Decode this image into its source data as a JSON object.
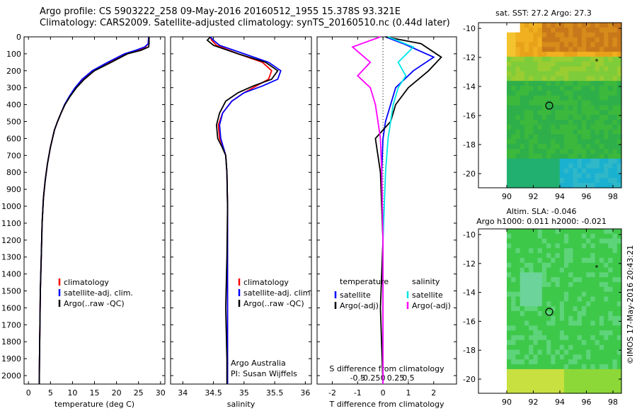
{
  "header": {
    "line1": "Argo profile: CS 5903222_258 09-May-2016 20160512_1955 15.378S 93.321E",
    "line2": "Climatology: CARS2009. Satellite-adjusted climatology: synTS_20160510.nc (0.44d later)"
  },
  "side_stamp": "©IMOS 17-May-2016 20:43:21",
  "chart_data": [
    {
      "id": "temperature",
      "type": "line",
      "xlabel": "temperature (deg C)",
      "xlim": [
        -1,
        31
      ],
      "xticks": [
        0,
        5,
        10,
        15,
        20,
        25,
        30
      ],
      "ylim": [
        0,
        2050
      ],
      "yticks": [
        0,
        100,
        200,
        300,
        400,
        500,
        600,
        700,
        800,
        900,
        1000,
        1100,
        1200,
        1300,
        1400,
        1500,
        1600,
        1700,
        1800,
        1900,
        2000
      ],
      "legend": [
        "climatology",
        "satellite-adj. clim.",
        "Argo(..raw -QC)"
      ],
      "series": [
        {
          "name": "climatology",
          "color": "#ff0000",
          "x": [
            27.3,
            27.2,
            26.6,
            25.0,
            22.5,
            18.5,
            14.8,
            12.5,
            10.8,
            9.4,
            8.3,
            7.4,
            6.6,
            5.9,
            5.0,
            4.3,
            3.8,
            3.4,
            3.1,
            2.9,
            2.7,
            2.6,
            2.5,
            2.45
          ],
          "y": [
            0,
            40,
            60,
            80,
            100,
            150,
            200,
            250,
            300,
            350,
            400,
            450,
            500,
            550,
            650,
            750,
            850,
            950,
            1100,
            1300,
            1500,
            1700,
            1900,
            2050
          ]
        },
        {
          "name": "satellite-adj. clim.",
          "color": "#0000ff",
          "x": [
            27.3,
            27.2,
            26.4,
            24.3,
            21.8,
            18.0,
            14.5,
            12.2,
            10.6,
            9.3,
            8.2,
            7.4,
            6.6,
            5.9,
            5.0,
            4.3,
            3.8,
            3.4,
            3.1,
            2.9,
            2.7,
            2.6,
            2.5,
            2.45
          ],
          "y": [
            0,
            40,
            60,
            80,
            100,
            150,
            200,
            250,
            300,
            350,
            400,
            450,
            500,
            550,
            650,
            750,
            850,
            950,
            1100,
            1300,
            1500,
            1700,
            1900,
            2050
          ]
        },
        {
          "name": "Argo(..raw -QC)",
          "color": "#000000",
          "x": [
            27.4,
            27.4,
            27.3,
            25.5,
            22.5,
            18.8,
            15.0,
            12.7,
            10.9,
            9.5,
            8.3,
            7.4,
            6.6,
            5.9,
            5.0,
            4.3,
            3.8,
            3.4,
            3.1,
            2.9,
            2.7,
            2.6,
            2.5,
            2.45
          ],
          "y": [
            0,
            40,
            60,
            80,
            100,
            150,
            200,
            250,
            300,
            350,
            400,
            450,
            500,
            550,
            650,
            750,
            850,
            950,
            1100,
            1300,
            1500,
            1700,
            1900,
            2050
          ]
        }
      ]
    },
    {
      "id": "salinity",
      "type": "line",
      "xlabel": "salinity",
      "xlim": [
        33.8,
        36.1
      ],
      "xticks": [
        34,
        34.5,
        35,
        35.5,
        36
      ],
      "ylim": [
        0,
        2050
      ],
      "legend": [
        "climatology",
        "satellite-adj. clim.",
        "Argo(..raw -QC)"
      ],
      "annotations": [
        "Argo Australia",
        "PI: Susan Wijffels"
      ],
      "series": [
        {
          "name": "climatology",
          "color": "#ff0000",
          "x": [
            34.45,
            34.47,
            34.55,
            34.9,
            35.3,
            35.45,
            35.4,
            35.2,
            35.0,
            34.8,
            34.65,
            34.58,
            34.6,
            34.66,
            34.7,
            34.72,
            34.73,
            34.73,
            34.73,
            34.73,
            34.73
          ],
          "y": [
            0,
            20,
            50,
            100,
            150,
            200,
            250,
            290,
            330,
            380,
            450,
            520,
            600,
            650,
            700,
            800,
            1000,
            1300,
            1600,
            1900,
            2050
          ]
        },
        {
          "name": "satellite-adj. clim.",
          "color": "#0000ff",
          "x": [
            34.45,
            34.5,
            34.6,
            35.0,
            35.4,
            35.6,
            35.55,
            35.3,
            35.0,
            34.8,
            34.65,
            34.6,
            34.62,
            34.66,
            34.7,
            34.72,
            34.73,
            34.73,
            34.73,
            34.73,
            34.73
          ],
          "y": [
            0,
            20,
            50,
            100,
            150,
            200,
            250,
            290,
            330,
            380,
            450,
            520,
            600,
            650,
            700,
            800,
            1000,
            1300,
            1600,
            1900,
            2050
          ]
        },
        {
          "name": "Argo(..raw -QC)",
          "color": "#000000",
          "x": [
            34.45,
            34.4,
            34.5,
            34.9,
            35.35,
            35.55,
            35.45,
            35.15,
            34.9,
            34.7,
            34.6,
            34.55,
            34.57,
            34.64,
            34.7,
            34.72,
            34.73,
            34.72,
            34.7,
            34.72,
            34.72
          ],
          "y": [
            0,
            20,
            50,
            100,
            150,
            200,
            250,
            290,
            330,
            380,
            450,
            520,
            600,
            650,
            700,
            800,
            1000,
            1300,
            1600,
            1900,
            2050
          ]
        }
      ]
    },
    {
      "id": "differences",
      "type": "line",
      "xlabel": "T difference from climatology",
      "xlabel_top": "S difference from climatology",
      "xlim": [
        -2.6,
        2.9
      ],
      "xticks": [
        -2,
        -1,
        0,
        1,
        2
      ],
      "xticks_top": [
        "-0.5",
        "-0.25",
        "0",
        "0.25",
        "0.5"
      ],
      "ylim": [
        0,
        2050
      ],
      "legend_left": {
        "title": "temperature",
        "items": [
          "satellite",
          "Argo(-adj)"
        ]
      },
      "legend_right": {
        "title": "salinity",
        "items": [
          "satellite",
          "Argo(-adj)"
        ]
      },
      "series": [
        {
          "name": "temperature satellite",
          "color": "#0000ff",
          "x": [
            0.1,
            0.8,
            2.0,
            1.2,
            0.5,
            0.3,
            0.1,
            0.0,
            -0.05,
            0.0,
            0.0
          ],
          "y": [
            0,
            40,
            120,
            200,
            300,
            400,
            500,
            600,
            800,
            1200,
            2050
          ]
        },
        {
          "name": "temperature Argo(-adj)",
          "color": "#000000",
          "x": [
            0.1,
            1.5,
            2.3,
            1.8,
            1.0,
            0.5,
            0.3,
            -0.3,
            -0.1,
            0.0,
            -0.1,
            0.0
          ],
          "y": [
            0,
            40,
            120,
            200,
            300,
            400,
            500,
            600,
            800,
            1200,
            1600,
            2050
          ]
        },
        {
          "name": "salinity satellite",
          "color": "#00e5e5",
          "x": [
            0.2,
            1.2,
            0.6,
            0.9,
            0.6,
            0.4,
            0.3,
            0.2,
            0.1,
            0.0,
            0.0
          ],
          "y": [
            0,
            60,
            150,
            230,
            300,
            400,
            500,
            600,
            800,
            1200,
            2050
          ]
        },
        {
          "name": "salinity Argo(-adj)",
          "color": "#ff00ff",
          "x": [
            -0.1,
            -1.2,
            -0.5,
            -1.0,
            -0.5,
            -0.3,
            -0.2,
            -0.1,
            -0.05,
            0.0,
            0.0
          ],
          "y": [
            0,
            60,
            150,
            230,
            300,
            400,
            500,
            600,
            800,
            1200,
            2050
          ]
        }
      ]
    },
    {
      "id": "sst-map",
      "type": "heatmap",
      "title": "sat. SST: 27.2 Argo: 27.3",
      "xticks": [
        "90",
        "92",
        "94",
        "96",
        "98"
      ],
      "yticks": [
        "-10",
        "-12",
        "-14",
        "-16",
        "-18",
        "-20"
      ]
    },
    {
      "id": "sla-map",
      "type": "heatmap",
      "title": "Altim. SLA: -0.046",
      "subtitle": "Argo h1000: 0.011 h2000: -0.021",
      "xticks": [
        "90",
        "92",
        "94",
        "96",
        "98"
      ],
      "yticks": [
        "-10",
        "-12",
        "-14",
        "-16",
        "-18",
        "-20"
      ]
    }
  ]
}
